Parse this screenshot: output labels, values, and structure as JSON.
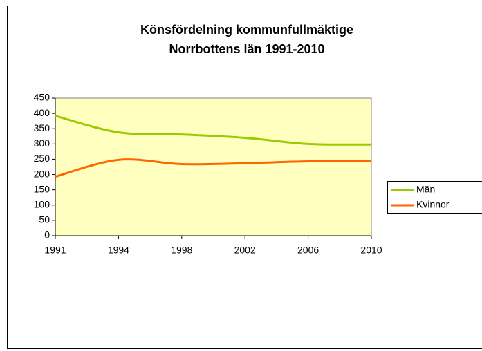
{
  "chart_data": {
    "type": "line",
    "title": [
      "Könsfördelning kommunfullmäktige",
      "Norrbottens län 1991-2010"
    ],
    "categories": [
      "1991",
      "1994",
      "1998",
      "2002",
      "2006",
      "2010"
    ],
    "series": [
      {
        "name": "Män",
        "color": "#99cc00",
        "values": [
          392,
          338,
          331,
          320,
          300,
          298
        ]
      },
      {
        "name": "Kvinnor",
        "color": "#ff6600",
        "values": [
          193,
          248,
          234,
          237,
          243,
          243
        ]
      }
    ],
    "ylim": [
      0,
      450
    ],
    "yticks": [
      0,
      50,
      100,
      150,
      200,
      250,
      300,
      350,
      400,
      450
    ],
    "plot_background": "#ffffc0",
    "legend": "right"
  }
}
